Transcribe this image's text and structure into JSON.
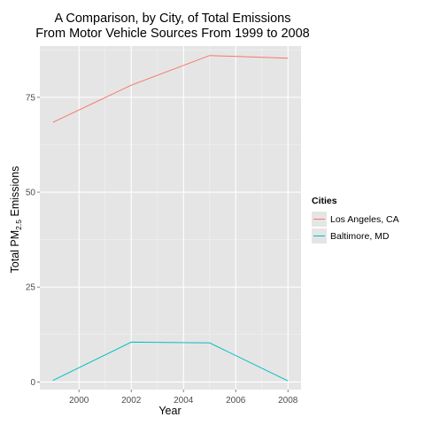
{
  "chart_data": {
    "type": "line",
    "title_line1": "A Comparison, by City, of Total Emissions",
    "title_line2": "From Motor Vehicle Sources From 1999 to 2008",
    "xlabel": "Year",
    "ylabel_prefix": "Total PM",
    "ylabel_sub": "2.5",
    "ylabel_suffix": " Emissions",
    "x": [
      1999,
      2002,
      2005,
      2008
    ],
    "xlim": [
      1998.5,
      2008.5
    ],
    "ylim": [
      -2,
      88.5
    ],
    "x_ticks": [
      2000,
      2002,
      2004,
      2006,
      2008
    ],
    "y_ticks": [
      0,
      25,
      50,
      75
    ],
    "grid": true,
    "legend": {
      "title": "Cities",
      "position": "right"
    },
    "series": [
      {
        "name": "Los Angeles, CA",
        "color": "#F8766D",
        "values": [
          68.4,
          78.2,
          86.0,
          85.3
        ]
      },
      {
        "name": "Baltimore, MD",
        "color": "#00BFC4",
        "values": [
          0.4,
          10.5,
          10.3,
          0.3
        ]
      }
    ]
  }
}
